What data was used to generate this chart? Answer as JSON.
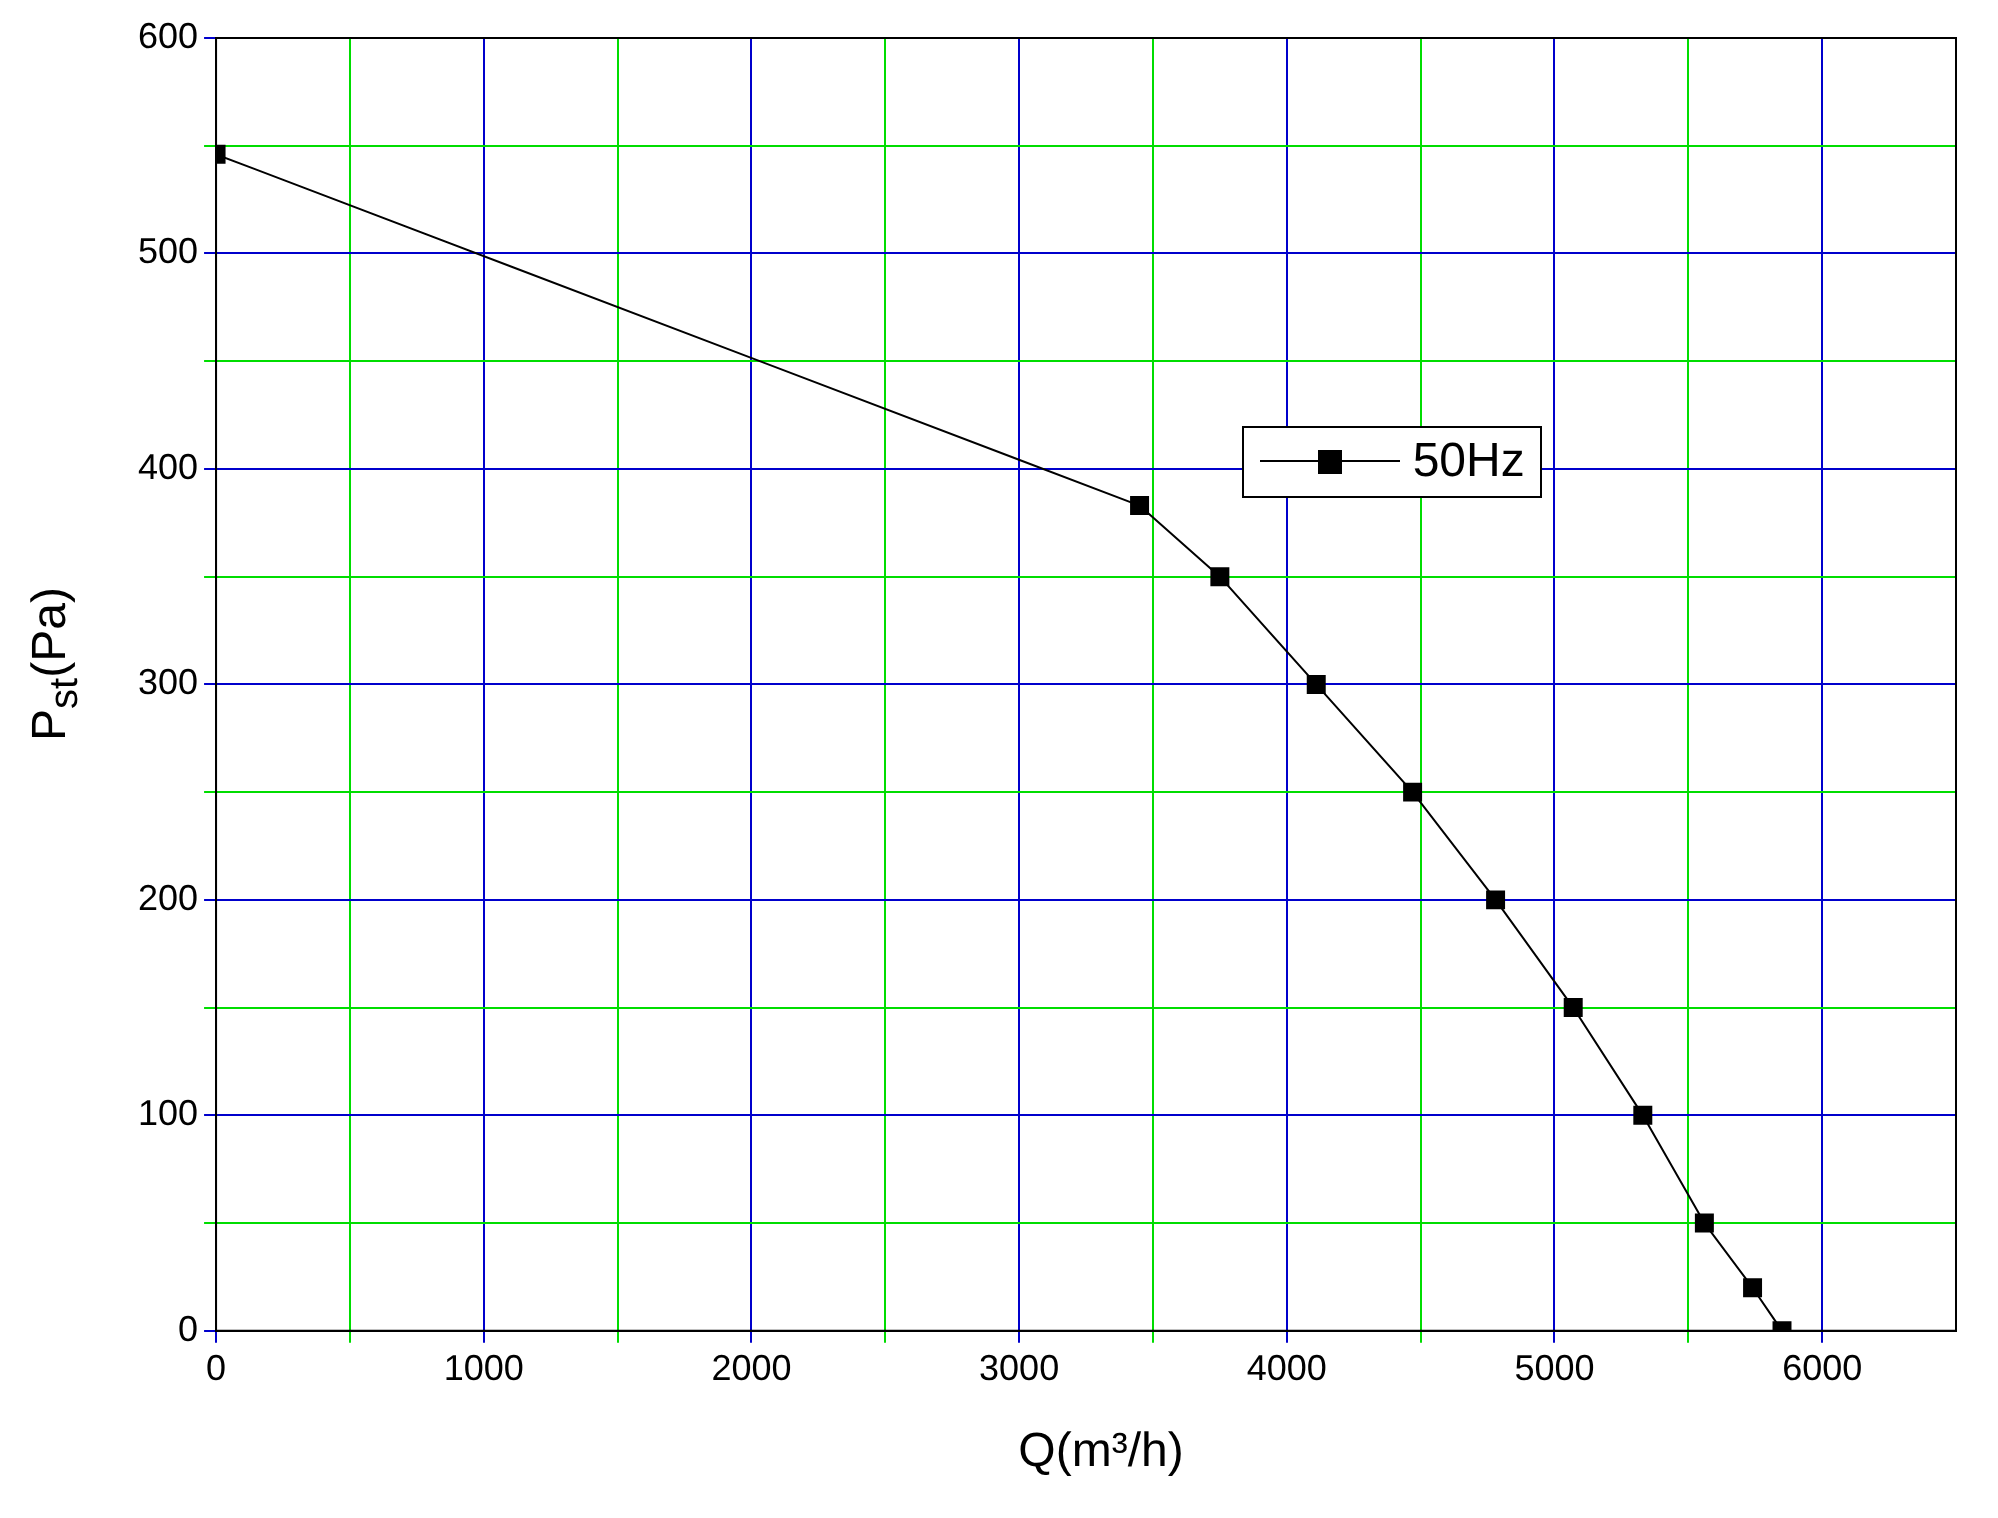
{
  "chart_data": {
    "type": "line",
    "xlabel": "Q(m³/h)",
    "ylabel": "P$_{st}$(Pa)",
    "x": [
      0,
      3450,
      3750,
      4110,
      4470,
      4780,
      5070,
      5330,
      5560,
      5740,
      5850
    ],
    "series": [
      {
        "name": "50Hz",
        "color": "#000000",
        "values": [
          546,
          383,
          350,
          300,
          250,
          200,
          150,
          100,
          50,
          20,
          0
        ]
      }
    ],
    "xlim": [
      0,
      6500
    ],
    "ylim": [
      0,
      600
    ],
    "xticks": [
      0,
      {
        "value": 500,
        "label": null
      },
      1000,
      {
        "value": 1500,
        "label": null
      },
      2000,
      {
        "value": 2500,
        "label": null
      },
      3000,
      {
        "value": 3500,
        "label": null
      },
      4000,
      {
        "value": 4500,
        "label": null
      },
      5000,
      {
        "value": 5500,
        "label": null
      },
      6000
    ],
    "yticks": [
      0,
      {
        "value": 50,
        "label": null
      },
      100,
      {
        "value": 150,
        "label": null
      },
      200,
      {
        "value": 250,
        "label": null
      },
      300,
      {
        "value": 350,
        "label": null
      },
      400,
      {
        "value": 450,
        "label": null
      },
      500,
      {
        "value": 550,
        "label": null
      },
      600
    ],
    "grid": true,
    "legend": "right",
    "marker": "square",
    "line_style": "solid"
  }
}
